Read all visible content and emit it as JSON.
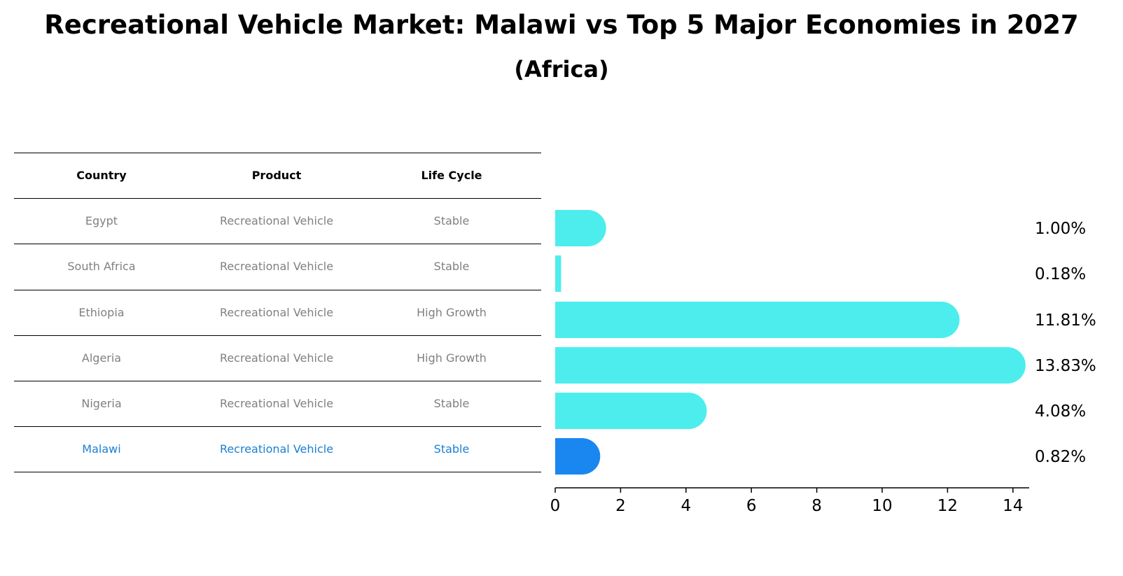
{
  "title": "Recreational Vehicle Market: Malawi vs Top 5 Major Economies in 2027",
  "subtitle": "(Africa)",
  "table": {
    "headers": [
      "Country",
      "Product",
      "Life Cycle"
    ],
    "rows": [
      [
        "Egypt",
        "Recreational Vehicle",
        "Stable"
      ],
      [
        "South Africa",
        "Recreational Vehicle",
        "Stable"
      ],
      [
        "Ethiopia",
        "Recreational Vehicle",
        "High Growth"
      ],
      [
        "Algeria",
        "Recreational Vehicle",
        "High Growth"
      ],
      [
        "Nigeria",
        "Recreational Vehicle",
        "Stable"
      ],
      [
        "Malawi",
        "Recreational Vehicle",
        "Stable"
      ]
    ],
    "highlight_row": 5
  },
  "chart_data": {
    "type": "bar",
    "orientation": "horizontal",
    "categories": [
      "Egypt",
      "South Africa",
      "Ethiopia",
      "Algeria",
      "Nigeria",
      "Malawi"
    ],
    "values": [
      1.0,
      0.18,
      11.81,
      13.83,
      4.08,
      0.82
    ],
    "value_labels": [
      "1.00%",
      "0.18%",
      "11.81%",
      "13.83%",
      "4.08%",
      "0.82%"
    ],
    "xticks": [
      "0",
      "2",
      "4",
      "6",
      "8",
      "10",
      "12",
      "14"
    ],
    "xlim": [
      0,
      14.5
    ],
    "highlight_index": 5,
    "colors": {
      "bar": "#4deded",
      "highlight": "#1a87f0"
    },
    "grid": false
  }
}
